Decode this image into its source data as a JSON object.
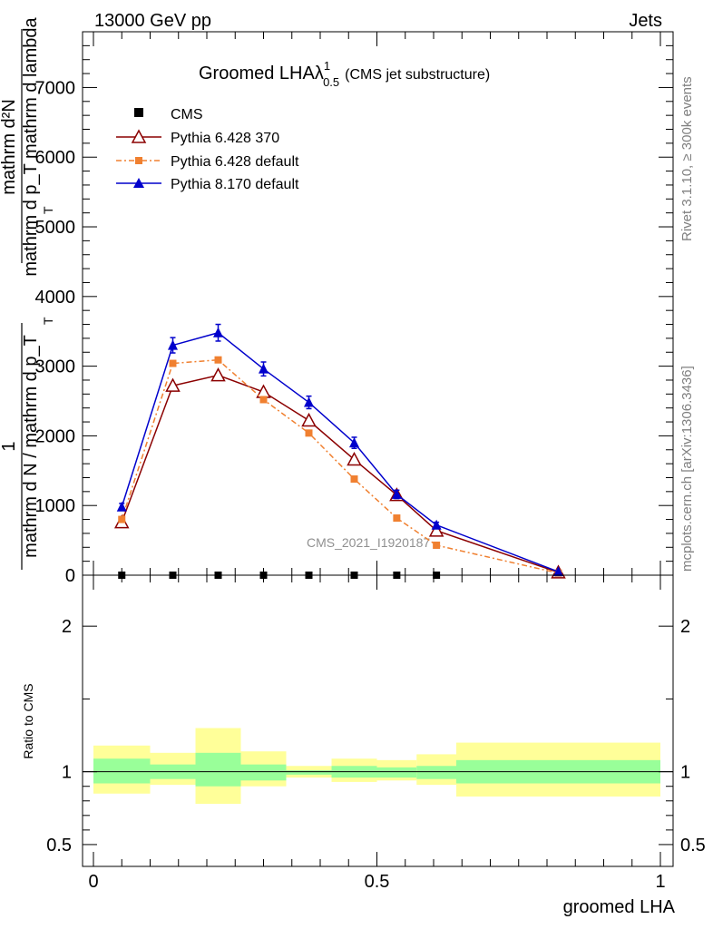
{
  "header": {
    "left": "13000 GeV pp",
    "right": "Jets"
  },
  "side": {
    "rivet": "Rivet 3.1.10, ≥ 300k events",
    "mcplots": "mcplots.cern.ch [arXiv:1306.3436]"
  },
  "colors": {
    "cms": "#000000",
    "py6_370": "#8b0000",
    "py6_default": "#f08030",
    "py8": "#0000cc",
    "band_inner": "#99ff99",
    "band_outer": "#ffff99"
  },
  "chart_data": [
    {
      "type": "line",
      "title": "Groomed LHAλ",
      "title_sup": "1",
      "title_sub": "0.5",
      "title_suffix": "(CMS jet substructure)",
      "watermark": "CMS_2021_I1920187",
      "ylabel_lines": [
        "mathrm d²N",
        "mathrm d p_T mathrm d lambda"
      ],
      "ylabel_prefix_lines": [
        "1",
        "mathrm d N / mathrm d p_T"
      ],
      "ylabel_sub": "T",
      "xlim": [
        0,
        1
      ],
      "ylim": [
        0,
        7800
      ],
      "y_ticks": [
        0,
        1000,
        2000,
        3000,
        4000,
        5000,
        6000,
        7000
      ],
      "y_tick_labels": [
        "0",
        "1000",
        "2000",
        "3000",
        "4000",
        "5000",
        "6000",
        "7000"
      ],
      "legend_position": "top-left",
      "series": [
        {
          "name": "CMS",
          "marker": "square",
          "x": [
            0.05,
            0.14,
            0.22,
            0.3,
            0.38,
            0.46,
            0.535,
            0.605
          ],
          "values": [
            0,
            0,
            0,
            0,
            0,
            0,
            0,
            0
          ]
        },
        {
          "name": "Pythia 6.428 370",
          "marker": "open-triangle",
          "x": [
            0.05,
            0.14,
            0.22,
            0.3,
            0.38,
            0.46,
            0.535,
            0.605,
            0.82
          ],
          "values": [
            760,
            2720,
            2870,
            2630,
            2220,
            1660,
            1150,
            640,
            40
          ]
        },
        {
          "name": "Pythia 6.428 default",
          "marker": "small-square",
          "x": [
            0.05,
            0.14,
            0.22,
            0.3,
            0.38,
            0.46,
            0.535,
            0.605,
            0.82
          ],
          "values": [
            800,
            3040,
            3090,
            2520,
            2040,
            1380,
            820,
            430,
            30
          ]
        },
        {
          "name": "Pythia 8.170 default",
          "marker": "triangle",
          "x": [
            0.05,
            0.14,
            0.22,
            0.3,
            0.38,
            0.46,
            0.535,
            0.605,
            0.82
          ],
          "values": [
            980,
            3300,
            3480,
            2960,
            2480,
            1900,
            1160,
            720,
            50
          ],
          "errors": [
            50,
            110,
            120,
            100,
            90,
            80,
            60,
            40,
            10
          ]
        }
      ]
    },
    {
      "type": "area",
      "ylabel": "Ratio to CMS",
      "xlabel": "groomed LHA",
      "xlim": [
        0,
        1
      ],
      "ylim": [
        0.35,
        2.35
      ],
      "x_ticks": [
        0,
        0.5,
        1
      ],
      "x_tick_labels": [
        "0",
        "0.5",
        "1"
      ],
      "y_ticks": [
        0.5,
        1,
        2
      ],
      "y_tick_labels": [
        "0.5",
        "1",
        "2"
      ],
      "reference_line": 1,
      "bins": [
        {
          "lo": 0.0,
          "hi": 0.1,
          "inner": [
            0.92,
            1.09
          ],
          "outer": [
            0.85,
            1.18
          ]
        },
        {
          "lo": 0.1,
          "hi": 0.18,
          "inner": [
            0.95,
            1.05
          ],
          "outer": [
            0.91,
            1.13
          ]
        },
        {
          "lo": 0.18,
          "hi": 0.26,
          "inner": [
            0.9,
            1.13
          ],
          "outer": [
            0.78,
            1.3
          ]
        },
        {
          "lo": 0.26,
          "hi": 0.34,
          "inner": [
            0.94,
            1.05
          ],
          "outer": [
            0.9,
            1.14
          ]
        },
        {
          "lo": 0.34,
          "hi": 0.42,
          "inner": [
            0.98,
            1.01
          ],
          "outer": [
            0.96,
            1.04
          ]
        },
        {
          "lo": 0.42,
          "hi": 0.5,
          "inner": [
            0.96,
            1.04
          ],
          "outer": [
            0.93,
            1.09
          ]
        },
        {
          "lo": 0.5,
          "hi": 0.57,
          "inner": [
            0.96,
            1.03
          ],
          "outer": [
            0.94,
            1.08
          ]
        },
        {
          "lo": 0.57,
          "hi": 0.64,
          "inner": [
            0.95,
            1.04
          ],
          "outer": [
            0.91,
            1.12
          ]
        },
        {
          "lo": 0.64,
          "hi": 1.0,
          "inner": [
            0.92,
            1.08
          ],
          "outer": [
            0.83,
            1.2
          ]
        }
      ]
    }
  ]
}
